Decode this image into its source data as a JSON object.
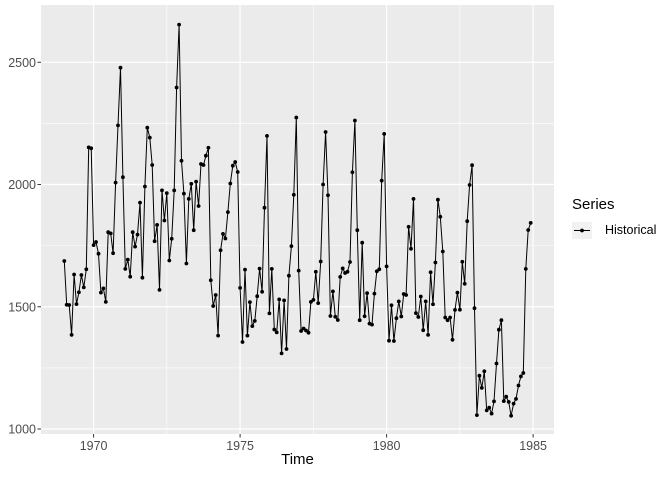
{
  "figure": {
    "background": "#ffffff",
    "panel_background": "#ebebeb",
    "grid_color": "#ffffff",
    "axis_text_color": "#4d4d4d",
    "tick_mark_color": "#333333",
    "legend": {
      "title": "Series",
      "items": [
        {
          "label": "Historical",
          "color": "#000000",
          "key_background": "#f2f2f2",
          "glyph": "line-with-point"
        }
      ]
    }
  },
  "chart_data": {
    "type": "line",
    "title": "",
    "xlabel": "Time",
    "ylabel": "",
    "legend_title": "Series",
    "legend_position": "right",
    "grid": true,
    "x_start": 1969,
    "frequency": 12,
    "xlim": [
      1968.205,
      1985.713
    ],
    "ylim": [
      979.5,
      2734.3
    ],
    "x_ticks": [
      1970,
      1975,
      1980,
      1985
    ],
    "x_tick_labels": [
      "1970",
      "1975",
      "1980",
      "1985"
    ],
    "x_minor_ticks": [
      1972.5,
      1977.5,
      1982.5
    ],
    "y_ticks": [
      1000,
      1500,
      2000,
      2500
    ],
    "y_tick_labels": [
      "1000",
      "1500",
      "2000",
      "2500"
    ],
    "y_minor_ticks": [
      1250,
      1750,
      2250
    ],
    "series": [
      {
        "name": "Historical",
        "color": "#000000",
        "marker": "point",
        "values": [
          1687,
          1508,
          1507,
          1385,
          1632,
          1511,
          1559,
          1630,
          1579,
          1653,
          2152,
          2148,
          1752,
          1765,
          1717,
          1558,
          1575,
          1520,
          1805,
          1800,
          1719,
          2008,
          2242,
          2478,
          2030,
          1655,
          1693,
          1623,
          1805,
          1746,
          1795,
          1926,
          1619,
          1992,
          2233,
          2192,
          2080,
          1768,
          1835,
          1569,
          1976,
          1853,
          1965,
          1689,
          1778,
          1976,
          2397,
          2654,
          2097,
          1963,
          1677,
          1941,
          2003,
          1813,
          2012,
          1912,
          2084,
          2080,
          2118,
          2150,
          1608,
          1503,
          1548,
          1382,
          1731,
          1798,
          1779,
          1887,
          2004,
          2077,
          2092,
          2051,
          1577,
          1356,
          1652,
          1382,
          1519,
          1421,
          1442,
          1543,
          1656,
          1561,
          1905,
          2199,
          1473,
          1655,
          1407,
          1395,
          1530,
          1309,
          1526,
          1327,
          1627,
          1748,
          1958,
          2274,
          1648,
          1401,
          1411,
          1403,
          1394,
          1520,
          1528,
          1643,
          1515,
          1685,
          2000,
          2215,
          1956,
          1462,
          1563,
          1459,
          1446,
          1622,
          1657,
          1638,
          1643,
          1683,
          2050,
          2262,
          1813,
          1445,
          1762,
          1461,
          1556,
          1431,
          1427,
          1554,
          1645,
          1653,
          2016,
          2207,
          1665,
          1361,
          1506,
          1360,
          1453,
          1522,
          1460,
          1552,
          1548,
          1827,
          1737,
          1941,
          1474,
          1458,
          1542,
          1404,
          1522,
          1385,
          1641,
          1510,
          1681,
          1938,
          1868,
          1726,
          1456,
          1445,
          1456,
          1365,
          1487,
          1558,
          1488,
          1684,
          1594,
          1850,
          1998,
          2079,
          1494,
          1057,
          1218,
          1168,
          1236,
          1076,
          1087,
          1063,
          1113,
          1268,
          1406,
          1445,
          1114,
          1132,
          1111,
          1054,
          1104,
          1123,
          1178,
          1215,
          1229,
          1655,
          1814,
          1843
        ]
      }
    ]
  }
}
